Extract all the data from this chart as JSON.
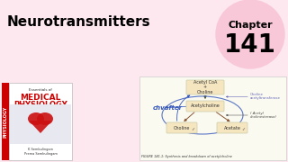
{
  "bg_color": "#fce8ee",
  "title": "Neurotransmitters",
  "title_color": "#000000",
  "title_fontsize": 11,
  "chapter_circle_color": "#f9c8d8",
  "chapter_text": "Chapter",
  "chapter_number": "141",
  "figure_caption": "FIGURE 141.1: Synthesis and breakdown of acetylcholine",
  "diagram_box_color": "#f5e6c0",
  "diagram_outline_color": "#ccccaa",
  "arrow_color_dark": "#885533",
  "arrow_color_blue": "#3355bb",
  "enzyme_color": "#445599",
  "choline_transf_color": "#6666bb"
}
